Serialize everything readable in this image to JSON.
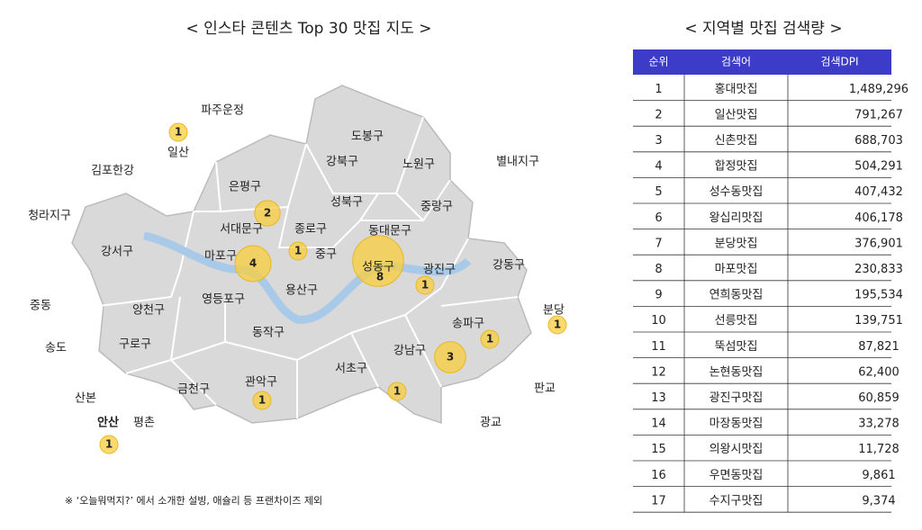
{
  "map": {
    "title": "< 인스타 콘텐츠 Top 30 맛집 지도 >",
    "labels": [
      "파주운정",
      "일산",
      "김포한강",
      "청라지구",
      "강서구",
      "중동",
      "양천구",
      "송도",
      "구로구",
      "산본",
      "안산",
      "평촌",
      "금천구",
      "관악구",
      "동작구",
      "영등포구",
      "마포구",
      "서대문구",
      "은평구",
      "종로구",
      "중구",
      "용산구",
      "성북구",
      "강북구",
      "도봉구",
      "노원구",
      "중랑구",
      "동대문구",
      "성동구",
      "광진구",
      "강동구",
      "송파구",
      "강남구",
      "서초구",
      "별내지구",
      "분당",
      "판교",
      "광교"
    ],
    "bubbles": [
      1,
      2,
      4,
      1,
      8,
      1,
      1,
      1,
      3,
      1,
      1,
      1
    ],
    "footnote": "※ ‘오늘뭐먹지?’ 에서 소개한 설빙, 애슐리 등 프랜차이즈 제외"
  },
  "table": {
    "title": "< 지역별 맛집 검색량 >",
    "header": [
      "순위",
      "검색어",
      "검색DPI"
    ],
    "rows": [
      [
        1,
        "홍대맛집",
        "1,489,296"
      ],
      [
        2,
        "일산맛집",
        "791,267"
      ],
      [
        3,
        "신촌맛집",
        "688,703"
      ],
      [
        4,
        "합정맛집",
        "504,291"
      ],
      [
        5,
        "성수동맛집",
        "407,432"
      ],
      [
        6,
        "왕십리맛집",
        "406,178"
      ],
      [
        7,
        "분당맛집",
        "376,901"
      ],
      [
        8,
        "마포맛집",
        "230,833"
      ],
      [
        9,
        "연희동맛집",
        "195,534"
      ],
      [
        10,
        "선릉맛집",
        "139,751"
      ],
      [
        11,
        "뚝섬맛집",
        "87,821"
      ],
      [
        12,
        "논현동맛집",
        "62,400"
      ],
      [
        13,
        "광진구맛집",
        "60,859"
      ],
      [
        14,
        "마장동맛집",
        "33,278"
      ],
      [
        15,
        "의왕시맛집",
        "11,728"
      ],
      [
        16,
        "우면동맛집",
        "9,861"
      ],
      [
        17,
        "수지구맛집",
        "9,374"
      ]
    ]
  }
}
